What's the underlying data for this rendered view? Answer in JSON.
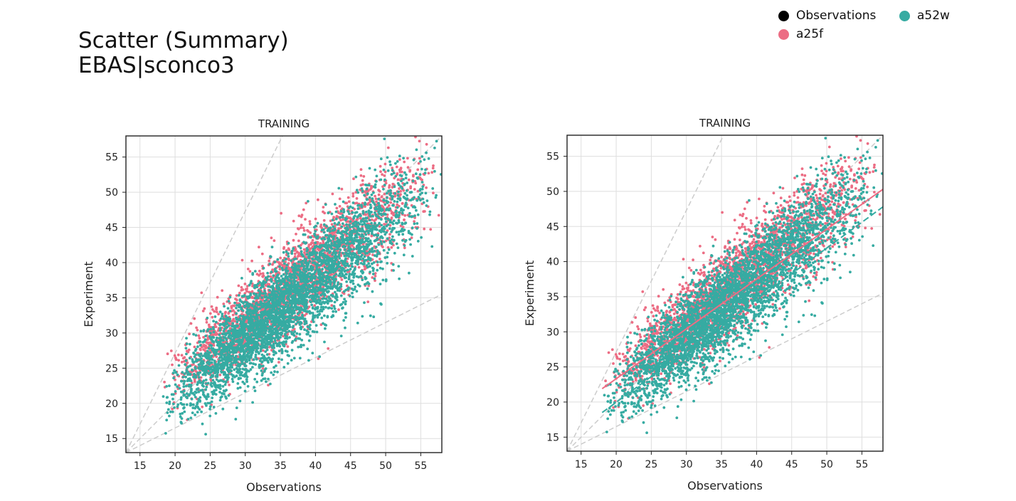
{
  "page": {
    "title_line1": "Scatter (Summary)",
    "title_line2": "EBAS|sconco3"
  },
  "legend": {
    "placement": "top-right",
    "items": [
      {
        "label": "Observations",
        "color": "#000000"
      },
      {
        "label": "a52w",
        "color": "#36aba2"
      },
      {
        "label": "a25f",
        "color": "#ec6d84"
      }
    ]
  },
  "chart_data": [
    {
      "type": "scatter",
      "title": "TRAINING",
      "xlabel": "Observations",
      "ylabel": "Experiment",
      "xlim": [
        13,
        58
      ],
      "ylim": [
        13,
        58
      ],
      "xticks": [
        15,
        20,
        25,
        30,
        35,
        40,
        45,
        50,
        55
      ],
      "yticks": [
        15,
        20,
        25,
        30,
        35,
        40,
        45,
        50,
        55
      ],
      "grid": true,
      "reference_lines": [
        {
          "style": "dashed",
          "color": "#cccccc",
          "points": [
            [
              13,
              13
            ],
            [
              58,
              58
            ]
          ]
        },
        {
          "style": "dashed",
          "color": "#cccccc",
          "points": [
            [
              13,
              13
            ],
            [
              35.3,
              58
            ]
          ]
        },
        {
          "style": "dashed",
          "color": "#cccccc",
          "points": [
            [
              13,
              13
            ],
            [
              58,
              35.5
            ]
          ]
        }
      ],
      "series": [
        {
          "name": "a25f",
          "color": "#ec6d84",
          "cloud": {
            "n": 2600,
            "x_range": [
              18,
              58
            ],
            "x_mode": 35,
            "slope": 0.8,
            "intercept": 7.5,
            "spread": 3.2
          }
        },
        {
          "name": "a52w",
          "color": "#36aba2",
          "cloud": {
            "n": 3800,
            "x_range": [
              18,
              58
            ],
            "x_mode": 33,
            "slope": 0.82,
            "intercept": 4.6,
            "spread": 3.4
          }
        }
      ]
    },
    {
      "type": "scatter",
      "title": "TRAINING",
      "xlabel": "Observations",
      "ylabel": "Experiment",
      "xlim": [
        13,
        58
      ],
      "ylim": [
        13,
        58
      ],
      "xticks": [
        15,
        20,
        25,
        30,
        35,
        40,
        45,
        50,
        55
      ],
      "yticks": [
        15,
        20,
        25,
        30,
        35,
        40,
        45,
        50,
        55
      ],
      "grid": true,
      "reference_lines": [
        {
          "style": "dashed",
          "color": "#cccccc",
          "points": [
            [
              13,
              13
            ],
            [
              58,
              58
            ]
          ]
        },
        {
          "style": "dashed",
          "color": "#cccccc",
          "points": [
            [
              13,
              13
            ],
            [
              35.3,
              58
            ]
          ]
        },
        {
          "style": "dashed",
          "color": "#cccccc",
          "points": [
            [
              13,
              13
            ],
            [
              58,
              35.5
            ]
          ]
        }
      ],
      "series": [
        {
          "name": "a25f",
          "color": "#ec6d84",
          "cloud": {
            "n": 2600,
            "x_range": [
              18,
              58
            ],
            "x_mode": 35,
            "slope": 0.8,
            "intercept": 7.5,
            "spread": 3.2
          },
          "fit_line": {
            "style": "solid",
            "points": [
              [
                18,
                21.9
              ],
              [
                58,
                50.3
              ]
            ]
          }
        },
        {
          "name": "a52w",
          "color": "#36aba2",
          "cloud": {
            "n": 3800,
            "x_range": [
              18,
              58
            ],
            "x_mode": 33,
            "slope": 0.82,
            "intercept": 4.6,
            "spread": 3.4
          },
          "fit_line": {
            "style": "dashed",
            "points": [
              [
                18,
                18.5
              ],
              [
                58,
                47.8
              ]
            ]
          }
        }
      ]
    }
  ]
}
